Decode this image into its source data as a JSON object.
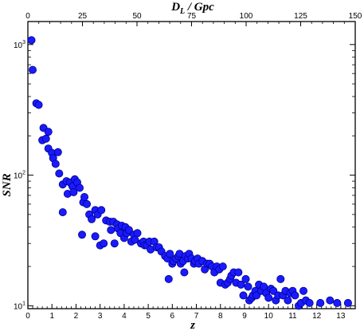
{
  "chart_data": {
    "type": "scatter",
    "xlabel": "z",
    "ylabel": "SNR",
    "x2label_main": "D",
    "x2label_sub": "L",
    "x2label_tail": " / Gpc",
    "xlim": [
      0,
      13.6
    ],
    "ylim": [
      9.5,
      1500
    ],
    "yscale": "log",
    "x2lim": [
      0,
      150
    ],
    "grid": false,
    "marker_color": "#1a1aff",
    "marker_edge": "#00008b",
    "x_ticks": [
      "0",
      "1",
      "2",
      "3",
      "4",
      "5",
      "6",
      "7",
      "8",
      "9",
      "10",
      "11",
      "12",
      "13"
    ],
    "x2_ticks": [
      "0",
      "25",
      "50",
      "75",
      "100",
      "125",
      "150"
    ],
    "y_ticks": [
      {
        "base": "10",
        "exp": "1",
        "value": 10
      },
      {
        "base": "10",
        "exp": "2",
        "value": 100
      },
      {
        "base": "10",
        "exp": "3",
        "value": 1000
      }
    ],
    "points": [
      {
        "x": 0.15,
        "y": 1080
      },
      {
        "x": 0.2,
        "y": 640
      },
      {
        "x": 0.35,
        "y": 355
      },
      {
        "x": 0.45,
        "y": 345
      },
      {
        "x": 0.6,
        "y": 185
      },
      {
        "x": 0.65,
        "y": 230
      },
      {
        "x": 0.75,
        "y": 190
      },
      {
        "x": 0.85,
        "y": 215
      },
      {
        "x": 0.85,
        "y": 160
      },
      {
        "x": 1.0,
        "y": 148
      },
      {
        "x": 1.05,
        "y": 135
      },
      {
        "x": 1.15,
        "y": 122
      },
      {
        "x": 1.25,
        "y": 150
      },
      {
        "x": 1.3,
        "y": 103
      },
      {
        "x": 1.45,
        "y": 85
      },
      {
        "x": 1.45,
        "y": 52
      },
      {
        "x": 1.6,
        "y": 90
      },
      {
        "x": 1.65,
        "y": 72
      },
      {
        "x": 1.75,
        "y": 88
      },
      {
        "x": 1.85,
        "y": 82
      },
      {
        "x": 1.9,
        "y": 74
      },
      {
        "x": 1.95,
        "y": 93
      },
      {
        "x": 2.05,
        "y": 88
      },
      {
        "x": 2.15,
        "y": 80
      },
      {
        "x": 2.25,
        "y": 35
      },
      {
        "x": 2.3,
        "y": 62
      },
      {
        "x": 2.35,
        "y": 68
      },
      {
        "x": 2.45,
        "y": 60
      },
      {
        "x": 2.55,
        "y": 50
      },
      {
        "x": 2.65,
        "y": 46
      },
      {
        "x": 2.8,
        "y": 54
      },
      {
        "x": 2.8,
        "y": 34
      },
      {
        "x": 2.9,
        "y": 50
      },
      {
        "x": 3.0,
        "y": 29
      },
      {
        "x": 3.05,
        "y": 54
      },
      {
        "x": 3.15,
        "y": 30
      },
      {
        "x": 3.25,
        "y": 45
      },
      {
        "x": 3.4,
        "y": 44
      },
      {
        "x": 3.45,
        "y": 38
      },
      {
        "x": 3.55,
        "y": 44
      },
      {
        "x": 3.6,
        "y": 30
      },
      {
        "x": 3.7,
        "y": 42
      },
      {
        "x": 3.75,
        "y": 39
      },
      {
        "x": 3.85,
        "y": 36
      },
      {
        "x": 3.9,
        "y": 41
      },
      {
        "x": 4.0,
        "y": 33
      },
      {
        "x": 4.05,
        "y": 40
      },
      {
        "x": 4.1,
        "y": 36
      },
      {
        "x": 4.2,
        "y": 38
      },
      {
        "x": 4.3,
        "y": 31
      },
      {
        "x": 4.4,
        "y": 35
      },
      {
        "x": 4.45,
        "y": 32
      },
      {
        "x": 4.55,
        "y": 36
      },
      {
        "x": 4.7,
        "y": 30
      },
      {
        "x": 4.8,
        "y": 31
      },
      {
        "x": 4.85,
        "y": 29
      },
      {
        "x": 4.95,
        "y": 29
      },
      {
        "x": 5.05,
        "y": 31
      },
      {
        "x": 5.1,
        "y": 27
      },
      {
        "x": 5.25,
        "y": 31
      },
      {
        "x": 5.35,
        "y": 28
      },
      {
        "x": 5.45,
        "y": 28
      },
      {
        "x": 5.55,
        "y": 26
      },
      {
        "x": 5.7,
        "y": 24
      },
      {
        "x": 5.8,
        "y": 23
      },
      {
        "x": 5.85,
        "y": 16
      },
      {
        "x": 5.9,
        "y": 25
      },
      {
        "x": 6.0,
        "y": 21
      },
      {
        "x": 6.05,
        "y": 22
      },
      {
        "x": 6.15,
        "y": 23
      },
      {
        "x": 6.25,
        "y": 24
      },
      {
        "x": 6.3,
        "y": 25
      },
      {
        "x": 6.35,
        "y": 21
      },
      {
        "x": 6.45,
        "y": 22
      },
      {
        "x": 6.5,
        "y": 18
      },
      {
        "x": 6.55,
        "y": 24
      },
      {
        "x": 6.65,
        "y": 23
      },
      {
        "x": 6.7,
        "y": 25
      },
      {
        "x": 6.8,
        "y": 23
      },
      {
        "x": 6.9,
        "y": 21
      },
      {
        "x": 6.95,
        "y": 22
      },
      {
        "x": 7.05,
        "y": 23
      },
      {
        "x": 7.1,
        "y": 21
      },
      {
        "x": 7.25,
        "y": 22
      },
      {
        "x": 7.35,
        "y": 19
      },
      {
        "x": 7.45,
        "y": 21
      },
      {
        "x": 7.55,
        "y": 21
      },
      {
        "x": 7.65,
        "y": 20
      },
      {
        "x": 7.75,
        "y": 18
      },
      {
        "x": 7.85,
        "y": 20
      },
      {
        "x": 7.95,
        "y": 19
      },
      {
        "x": 8.0,
        "y": 15
      },
      {
        "x": 8.1,
        "y": 20
      },
      {
        "x": 8.2,
        "y": 14.5
      },
      {
        "x": 8.3,
        "y": 15
      },
      {
        "x": 8.4,
        "y": 16
      },
      {
        "x": 8.45,
        "y": 17
      },
      {
        "x": 8.55,
        "y": 18
      },
      {
        "x": 8.65,
        "y": 15
      },
      {
        "x": 8.75,
        "y": 18
      },
      {
        "x": 8.85,
        "y": 14.5
      },
      {
        "x": 8.95,
        "y": 12
      },
      {
        "x": 9.05,
        "y": 16
      },
      {
        "x": 9.15,
        "y": 14
      },
      {
        "x": 9.2,
        "y": 11
      },
      {
        "x": 9.3,
        "y": 11.5
      },
      {
        "x": 9.35,
        "y": 12
      },
      {
        "x": 9.45,
        "y": 13
      },
      {
        "x": 9.5,
        "y": 12
      },
      {
        "x": 9.6,
        "y": 14.5
      },
      {
        "x": 9.7,
        "y": 13
      },
      {
        "x": 9.8,
        "y": 14
      },
      {
        "x": 9.9,
        "y": 12.5
      },
      {
        "x": 10.0,
        "y": 11.5
      },
      {
        "x": 10.1,
        "y": 13.5
      },
      {
        "x": 10.2,
        "y": 13
      },
      {
        "x": 10.3,
        "y": 11
      },
      {
        "x": 10.4,
        "y": 12
      },
      {
        "x": 10.5,
        "y": 16
      },
      {
        "x": 10.6,
        "y": 12
      },
      {
        "x": 10.7,
        "y": 13
      },
      {
        "x": 10.8,
        "y": 11
      },
      {
        "x": 10.9,
        "y": 12.5
      },
      {
        "x": 11.0,
        "y": 13
      },
      {
        "x": 11.1,
        "y": 12
      },
      {
        "x": 11.25,
        "y": 10
      },
      {
        "x": 11.35,
        "y": 10.5
      },
      {
        "x": 11.45,
        "y": 13
      },
      {
        "x": 11.55,
        "y": 11
      },
      {
        "x": 11.7,
        "y": 10.5
      },
      {
        "x": 12.15,
        "y": 10.5
      },
      {
        "x": 12.55,
        "y": 11
      },
      {
        "x": 12.85,
        "y": 10.5
      },
      {
        "x": 13.3,
        "y": 10.5
      }
    ]
  }
}
